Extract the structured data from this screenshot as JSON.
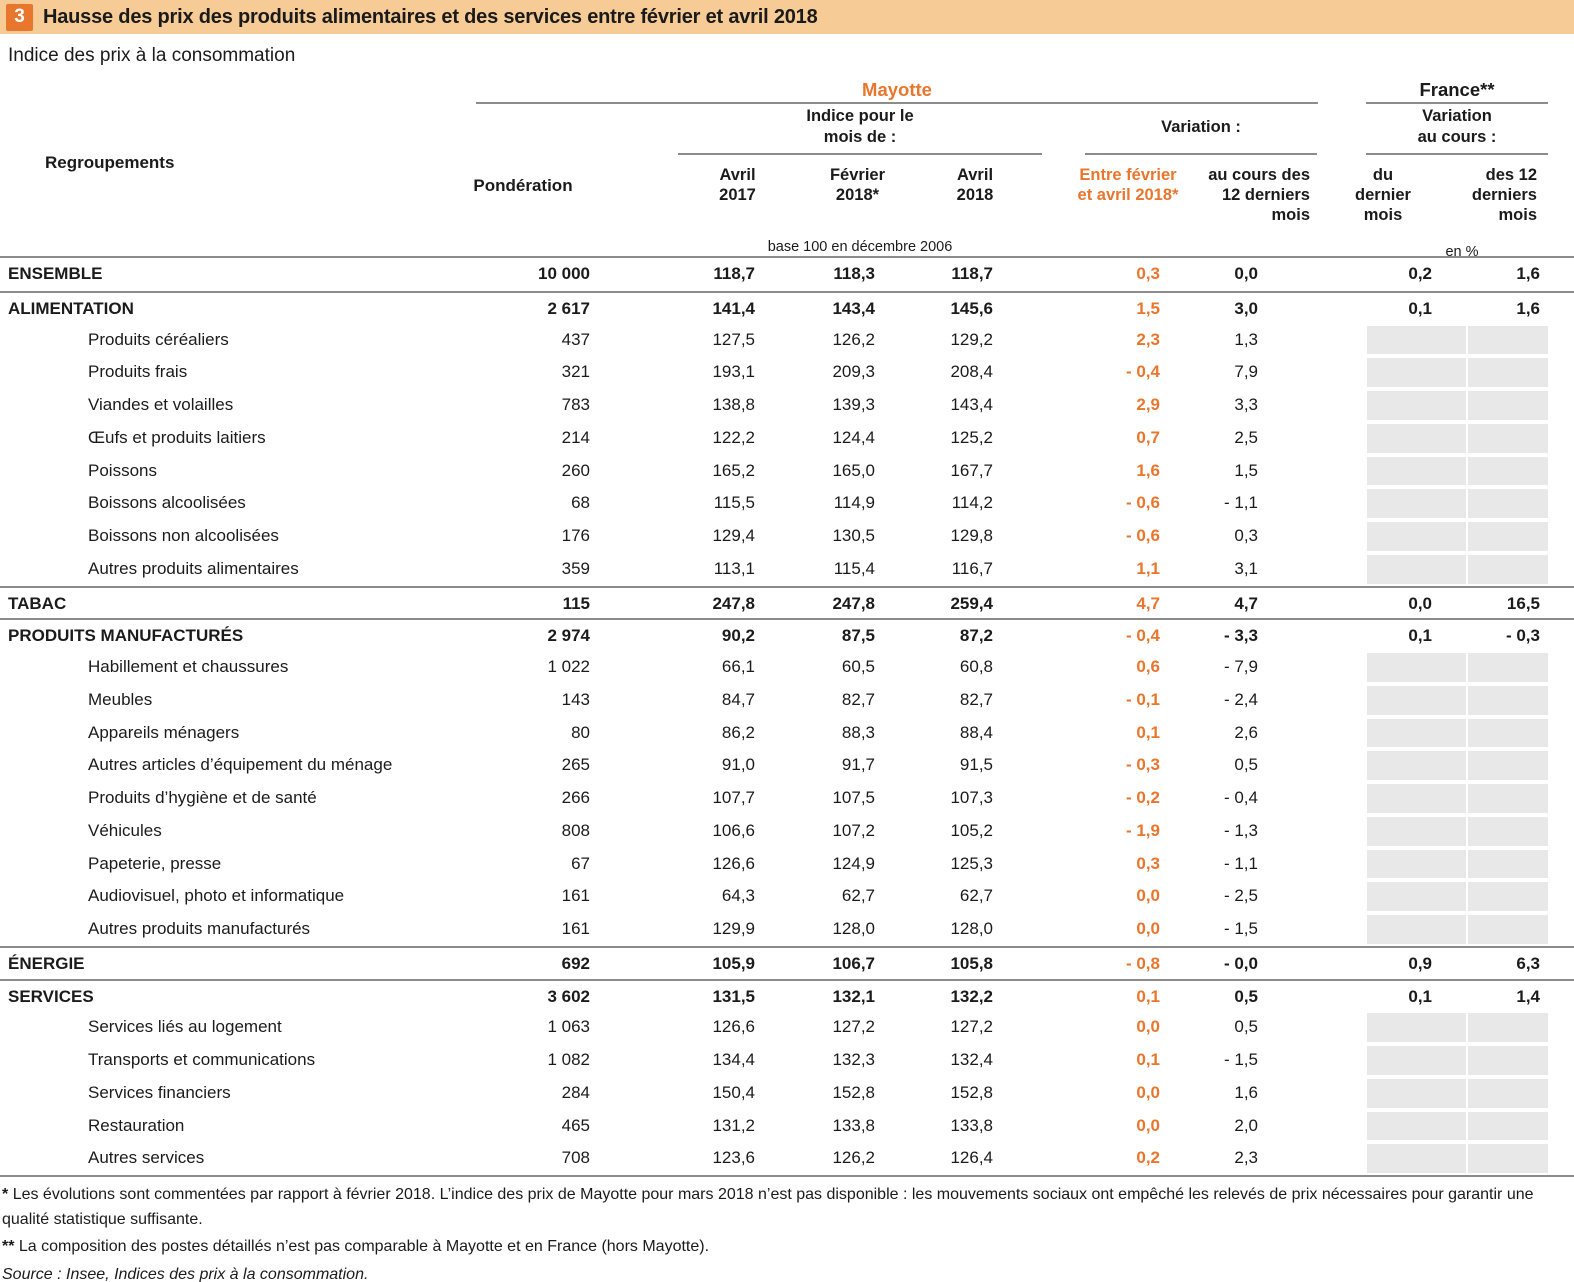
{
  "title": {
    "number": "3",
    "text": "Hausse des prix des produits alimentaires et des services entre février et avril 2018"
  },
  "subtitle": "Indice des prix à la consommation",
  "colors": {
    "accent_orange": "#e8762d",
    "title_band": "#f6cb95",
    "greyed_cell": "#e8e8e8",
    "rule_grey": "#8c8c8c"
  },
  "header": {
    "regroupements": "Regroupements",
    "ponderation": "Pondération",
    "group_mayotte": "Mayotte",
    "group_france": "France**",
    "group_indice": "Indice pour le\nmois de :",
    "group_variation": "Variation :",
    "group_variation_cours": "Variation\nau cours :",
    "col_avril_2017": "Avril\n2017",
    "col_fevrier_2018": "Février\n2018*",
    "col_avril_2018": "Avril\n2018",
    "col_entre_fevrier_avril": "Entre février\net avril 2018*",
    "col_au_cours_12": "au cours des\n12 derniers\nmois",
    "col_du_dernier_mois": "du\ndernier\nmois",
    "col_des_12_derniers_mois": "des 12\nderniers\nmois",
    "note_base": "base 100 en décembre 2006",
    "note_unit": "en %"
  },
  "table": {
    "rows": [
      {
        "label": "ENSEMBLE",
        "level": "section",
        "topline": false,
        "grey": false,
        "ponderation": "10 000",
        "avril2017": "118,7",
        "fevrier2018": "118,3",
        "avril2018": "118,7",
        "entre": "0,3",
        "cours12": "0,0",
        "fr_du": "0,2",
        "fr_12": "1,6"
      },
      {
        "label": "ALIMENTATION",
        "level": "section",
        "topline": true,
        "grey": false,
        "ponderation": "2 617",
        "avril2017": "141,4",
        "fevrier2018": "143,4",
        "avril2018": "145,6",
        "entre": "1,5",
        "cours12": "3,0",
        "fr_du": "0,1",
        "fr_12": "1,6"
      },
      {
        "label": "Produits céréaliers",
        "level": "sub",
        "topline": false,
        "grey": true,
        "ponderation": "437",
        "avril2017": "127,5",
        "fevrier2018": "126,2",
        "avril2018": "129,2",
        "entre": "2,3",
        "cours12": "1,3",
        "fr_du": "",
        "fr_12": ""
      },
      {
        "label": "Produits frais",
        "level": "sub",
        "topline": false,
        "grey": true,
        "ponderation": "321",
        "avril2017": "193,1",
        "fevrier2018": "209,3",
        "avril2018": "208,4",
        "entre": "- 0,4",
        "cours12": "7,9",
        "fr_du": "",
        "fr_12": ""
      },
      {
        "label": "Viandes et volailles",
        "level": "sub",
        "topline": false,
        "grey": true,
        "ponderation": "783",
        "avril2017": "138,8",
        "fevrier2018": "139,3",
        "avril2018": "143,4",
        "entre": "2,9",
        "cours12": "3,3",
        "fr_du": "",
        "fr_12": ""
      },
      {
        "label": "Œufs et produits laitiers",
        "level": "sub",
        "topline": false,
        "grey": true,
        "ponderation": "214",
        "avril2017": "122,2",
        "fevrier2018": "124,4",
        "avril2018": "125,2",
        "entre": "0,7",
        "cours12": "2,5",
        "fr_du": "",
        "fr_12": ""
      },
      {
        "label": "Poissons",
        "level": "sub",
        "topline": false,
        "grey": true,
        "ponderation": "260",
        "avril2017": "165,2",
        "fevrier2018": "165,0",
        "avril2018": "167,7",
        "entre": "1,6",
        "cours12": "1,5",
        "fr_du": "",
        "fr_12": ""
      },
      {
        "label": "Boissons alcoolisées",
        "level": "sub",
        "topline": false,
        "grey": true,
        "ponderation": "68",
        "avril2017": "115,5",
        "fevrier2018": "114,9",
        "avril2018": "114,2",
        "entre": "- 0,6",
        "cours12": "- 1,1",
        "fr_du": "",
        "fr_12": ""
      },
      {
        "label": "Boissons non alcoolisées",
        "level": "sub",
        "topline": false,
        "grey": true,
        "ponderation": "176",
        "avril2017": "129,4",
        "fevrier2018": "130,5",
        "avril2018": "129,8",
        "entre": "- 0,6",
        "cours12": "0,3",
        "fr_du": "",
        "fr_12": ""
      },
      {
        "label": "Autres produits alimentaires",
        "level": "sub",
        "topline": false,
        "grey": true,
        "ponderation": "359",
        "avril2017": "113,1",
        "fevrier2018": "115,4",
        "avril2018": "116,7",
        "entre": "1,1",
        "cours12": "3,1",
        "fr_du": "",
        "fr_12": ""
      },
      {
        "label": "TABAC",
        "level": "section",
        "topline": true,
        "grey": false,
        "ponderation": "115",
        "avril2017": "247,8",
        "fevrier2018": "247,8",
        "avril2018": "259,4",
        "entre": "4,7",
        "cours12": "4,7",
        "fr_du": "0,0",
        "fr_12": "16,5"
      },
      {
        "label": "PRODUITS MANUFACTURÉS",
        "level": "section",
        "topline": true,
        "grey": false,
        "ponderation": "2 974",
        "avril2017": "90,2",
        "fevrier2018": "87,5",
        "avril2018": "87,2",
        "entre": "- 0,4",
        "cours12": "- 3,3",
        "fr_du": "0,1",
        "fr_12": "- 0,3"
      },
      {
        "label": "Habillement et chaussures",
        "level": "sub",
        "topline": false,
        "grey": true,
        "ponderation": "1 022",
        "avril2017": "66,1",
        "fevrier2018": "60,5",
        "avril2018": "60,8",
        "entre": "0,6",
        "cours12": "- 7,9",
        "fr_du": "",
        "fr_12": ""
      },
      {
        "label": "Meubles",
        "level": "sub",
        "topline": false,
        "grey": true,
        "ponderation": "143",
        "avril2017": "84,7",
        "fevrier2018": "82,7",
        "avril2018": "82,7",
        "entre": "- 0,1",
        "cours12": "- 2,4",
        "fr_du": "",
        "fr_12": ""
      },
      {
        "label": "Appareils ménagers",
        "level": "sub",
        "topline": false,
        "grey": true,
        "ponderation": "80",
        "avril2017": "86,2",
        "fevrier2018": "88,3",
        "avril2018": "88,4",
        "entre": "0,1",
        "cours12": "2,6",
        "fr_du": "",
        "fr_12": ""
      },
      {
        "label": "Autres articles d’équipement du ménage",
        "level": "sub",
        "topline": false,
        "grey": true,
        "ponderation": "265",
        "avril2017": "91,0",
        "fevrier2018": "91,7",
        "avril2018": "91,5",
        "entre": "- 0,3",
        "cours12": "0,5",
        "fr_du": "",
        "fr_12": ""
      },
      {
        "label": "Produits d’hygiène et de santé",
        "level": "sub",
        "topline": false,
        "grey": true,
        "ponderation": "266",
        "avril2017": "107,7",
        "fevrier2018": "107,5",
        "avril2018": "107,3",
        "entre": "- 0,2",
        "cours12": "- 0,4",
        "fr_du": "",
        "fr_12": ""
      },
      {
        "label": "Véhicules",
        "level": "sub",
        "topline": false,
        "grey": true,
        "ponderation": "808",
        "avril2017": "106,6",
        "fevrier2018": "107,2",
        "avril2018": "105,2",
        "entre": "- 1,9",
        "cours12": "- 1,3",
        "fr_du": "",
        "fr_12": ""
      },
      {
        "label": "Papeterie, presse",
        "level": "sub",
        "topline": false,
        "grey": true,
        "ponderation": "67",
        "avril2017": "126,6",
        "fevrier2018": "124,9",
        "avril2018": "125,3",
        "entre": "0,3",
        "cours12": "- 1,1",
        "fr_du": "",
        "fr_12": ""
      },
      {
        "label": "Audiovisuel, photo et informatique",
        "level": "sub",
        "topline": false,
        "grey": true,
        "ponderation": "161",
        "avril2017": "64,3",
        "fevrier2018": "62,7",
        "avril2018": "62,7",
        "entre": "0,0",
        "cours12": "- 2,5",
        "fr_du": "",
        "fr_12": ""
      },
      {
        "label": "Autres produits manufacturés",
        "level": "sub",
        "topline": false,
        "grey": true,
        "ponderation": "161",
        "avril2017": "129,9",
        "fevrier2018": "128,0",
        "avril2018": "128,0",
        "entre": "0,0",
        "cours12": "- 1,5",
        "fr_du": "",
        "fr_12": ""
      },
      {
        "label": "ÉNERGIE",
        "level": "section",
        "topline": true,
        "grey": false,
        "ponderation": "692",
        "avril2017": "105,9",
        "fevrier2018": "106,7",
        "avril2018": "105,8",
        "entre": "- 0,8",
        "cours12": "- 0,0",
        "fr_du": "0,9",
        "fr_12": "6,3"
      },
      {
        "label": "SERVICES",
        "level": "section",
        "topline": true,
        "grey": false,
        "ponderation": "3 602",
        "avril2017": "131,5",
        "fevrier2018": "132,1",
        "avril2018": "132,2",
        "entre": "0,1",
        "cours12": "0,5",
        "fr_du": "0,1",
        "fr_12": "1,4"
      },
      {
        "label": "Services liés au logement",
        "level": "sub",
        "topline": false,
        "grey": true,
        "ponderation": "1 063",
        "avril2017": "126,6",
        "fevrier2018": "127,2",
        "avril2018": "127,2",
        "entre": "0,0",
        "cours12": "0,5",
        "fr_du": "",
        "fr_12": ""
      },
      {
        "label": "Transports et communications",
        "level": "sub",
        "topline": false,
        "grey": true,
        "ponderation": "1 082",
        "avril2017": "134,4",
        "fevrier2018": "132,3",
        "avril2018": "132,4",
        "entre": "0,1",
        "cours12": "- 1,5",
        "fr_du": "",
        "fr_12": ""
      },
      {
        "label": "Services financiers",
        "level": "sub",
        "topline": false,
        "grey": true,
        "ponderation": "284",
        "avril2017": "150,4",
        "fevrier2018": "152,8",
        "avril2018": "152,8",
        "entre": "0,0",
        "cours12": "1,6",
        "fr_du": "",
        "fr_12": ""
      },
      {
        "label": "Restauration",
        "level": "sub",
        "topline": false,
        "grey": true,
        "ponderation": "465",
        "avril2017": "131,2",
        "fevrier2018": "133,8",
        "avril2018": "133,8",
        "entre": "0,0",
        "cours12": "2,0",
        "fr_du": "",
        "fr_12": ""
      },
      {
        "label": "Autres services",
        "level": "sub",
        "topline": false,
        "grey": true,
        "ponderation": "708",
        "avril2017": "123,6",
        "fevrier2018": "126,2",
        "avril2018": "126,4",
        "entre": "0,2",
        "cours12": "2,3",
        "fr_du": "",
        "fr_12": ""
      }
    ]
  },
  "footnotes": [
    {
      "marker": "*",
      "text": "Les évolutions sont commentées par rapport à février 2018. L’indice des prix de Mayotte pour mars 2018 n’est pas disponible : les mouvements sociaux ont empêché les relevés de prix nécessaires pour garantir une qualité statistique suffisante."
    },
    {
      "marker": "**",
      "text": "La composition des postes détaillés n’est pas comparable à Mayotte et en France (hors Mayotte)."
    }
  ],
  "source": "Source : Insee, Indices des prix à la consommation."
}
